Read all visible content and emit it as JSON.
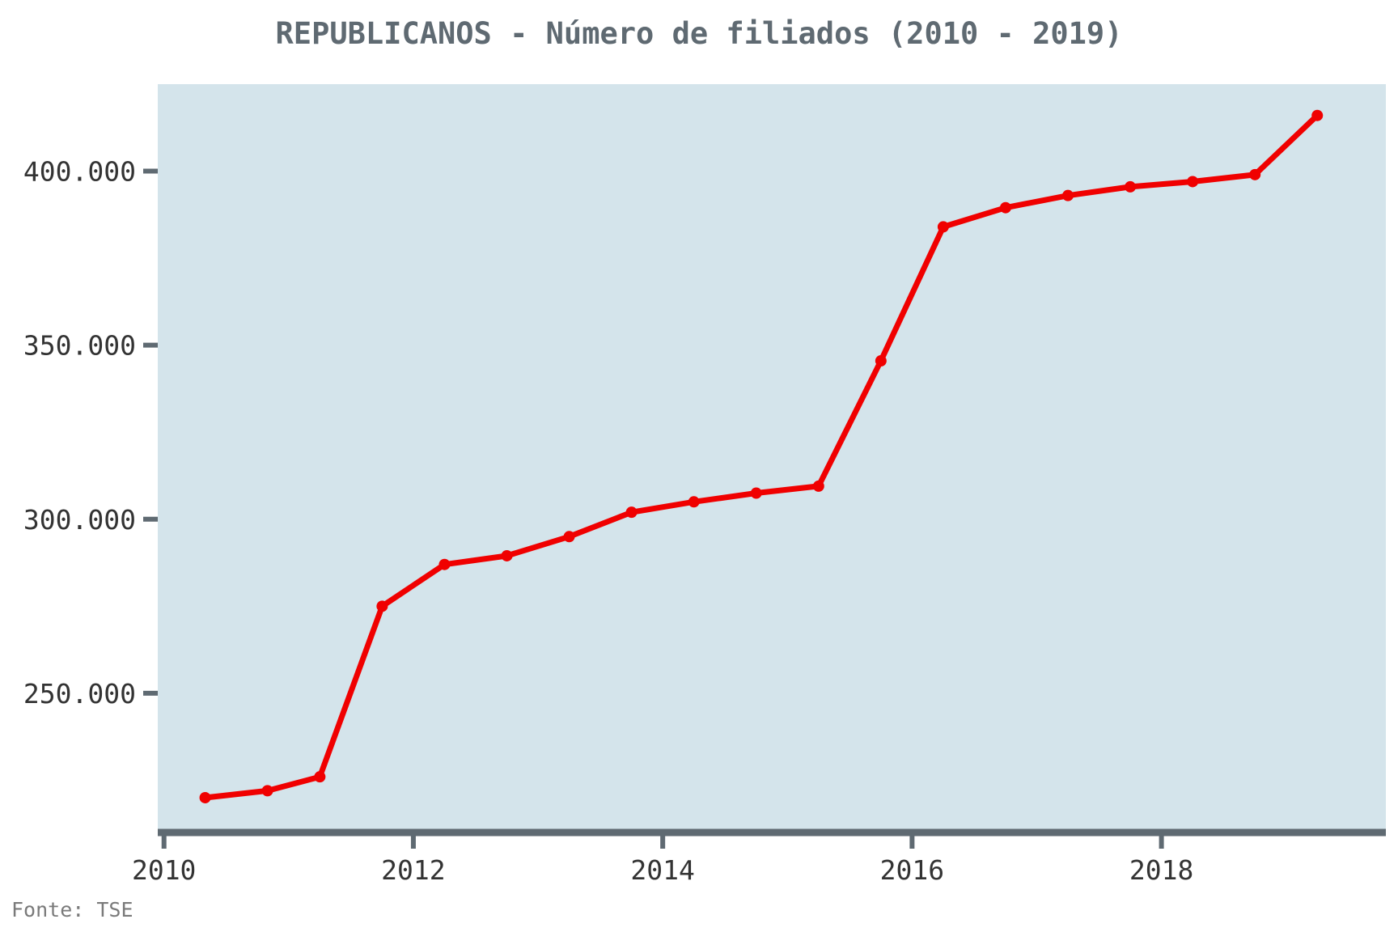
{
  "chart_data": {
    "type": "line",
    "title": "REPUBLICANOS - Número de filiados (2010 - 2019)",
    "xlabel": "",
    "ylabel": "",
    "source": "Fonte: TSE",
    "colors": {
      "line": "#f00000",
      "plot_background": "#d4e4eb",
      "axis": "#5f6a72",
      "title": "#5f6a72"
    },
    "grid": false,
    "xlim": [
      2009.95,
      2019.8
    ],
    "ylim": [
      210000,
      425000
    ],
    "x_ticks": [
      {
        "value": 2010,
        "label": "2010"
      },
      {
        "value": 2012,
        "label": "2012"
      },
      {
        "value": 2014,
        "label": "2014"
      },
      {
        "value": 2016,
        "label": "2016"
      },
      {
        "value": 2018,
        "label": "2018"
      }
    ],
    "y_ticks": [
      {
        "value": 250000,
        "label": "250.000"
      },
      {
        "value": 300000,
        "label": "300.000"
      },
      {
        "value": 350000,
        "label": "350.000"
      },
      {
        "value": 400000,
        "label": "400.000"
      }
    ],
    "series": [
      {
        "x": [
          2010.33,
          2010.83,
          2011.25,
          2011.75,
          2012.25,
          2012.75,
          2013.25,
          2013.75,
          2014.25,
          2014.75,
          2015.25,
          2015.75,
          2016.25,
          2016.75,
          2017.25,
          2017.75,
          2018.25,
          2018.75,
          2019.25
        ],
        "y": [
          220000,
          222000,
          226000,
          275000,
          287000,
          289500,
          295000,
          302000,
          305000,
          307500,
          309500,
          345500,
          384000,
          389500,
          393000,
          395500,
          397000,
          399000,
          416000
        ]
      }
    ]
  }
}
